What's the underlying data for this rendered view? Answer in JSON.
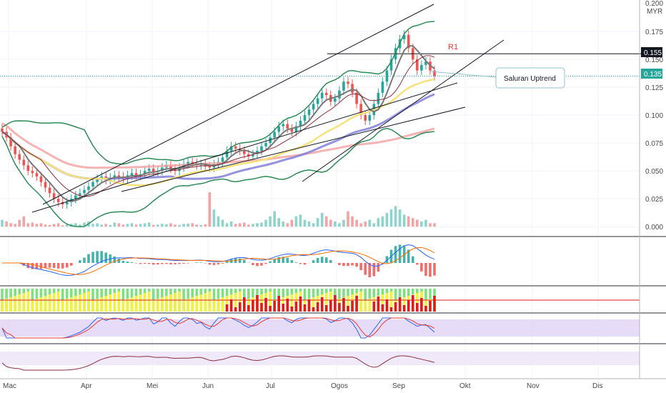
{
  "chart_data": {
    "type": "candlestick",
    "symbol_currency": "MYR",
    "y_axis": {
      "ticks": [
        "0.175",
        "0.150",
        "0.125",
        "0.100",
        "0.075",
        "0.050",
        "0.025",
        "0.000"
      ],
      "top_label": "0.200",
      "range": [
        -0.005,
        0.2
      ]
    },
    "x_axis": {
      "months": [
        "Mac",
        "Apr",
        "Mei",
        "Jun",
        "Jul",
        "Ogos",
        "Sep",
        "Okt",
        "Nov",
        "Dis"
      ]
    },
    "price_badges": [
      {
        "label": "0.155",
        "value": 0.155,
        "color": "#131722"
      },
      {
        "label": "0.135",
        "value": 0.135,
        "color": "#26a69a"
      }
    ],
    "resistance": {
      "label": "R1",
      "value": 0.155
    },
    "annotation": {
      "text": "Saluran Uptrend"
    },
    "closes": [
      0.085,
      0.08,
      0.072,
      0.065,
      0.06,
      0.055,
      0.05,
      0.048,
      0.045,
      0.04,
      0.035,
      0.03,
      0.025,
      0.022,
      0.02,
      0.022,
      0.025,
      0.028,
      0.03,
      0.033,
      0.036,
      0.04,
      0.043,
      0.045,
      0.042,
      0.044,
      0.046,
      0.045,
      0.043,
      0.046,
      0.048,
      0.046,
      0.047,
      0.05,
      0.052,
      0.049,
      0.05,
      0.053,
      0.055,
      0.052,
      0.05,
      0.053,
      0.056,
      0.058,
      0.057,
      0.055,
      0.056,
      0.054,
      0.053,
      0.056,
      0.058,
      0.062,
      0.068,
      0.072,
      0.07,
      0.068,
      0.065,
      0.063,
      0.065,
      0.068,
      0.072,
      0.075,
      0.08,
      0.085,
      0.09,
      0.092,
      0.088,
      0.085,
      0.09,
      0.095,
      0.1,
      0.105,
      0.11,
      0.115,
      0.12,
      0.118,
      0.112,
      0.115,
      0.122,
      0.13,
      0.128,
      0.12,
      0.11,
      0.1,
      0.095,
      0.1,
      0.11,
      0.12,
      0.13,
      0.14,
      0.15,
      0.16,
      0.168,
      0.172,
      0.16,
      0.15,
      0.14,
      0.145,
      0.148,
      0.14,
      0.135
    ],
    "volumes": [
      0.02,
      0.015,
      0.01,
      0.008,
      0.02,
      0.03,
      0.01,
      0.012,
      0.008,
      0.01,
      0.006,
      0.005,
      0.008,
      0.01,
      0.004,
      0.006,
      0.008,
      0.01,
      0.006,
      0.012,
      0.015,
      0.008,
      0.01,
      0.006,
      0.008,
      0.005,
      0.012,
      0.01,
      0.006,
      0.008,
      0.01,
      0.006,
      0.008,
      0.01,
      0.012,
      0.005,
      0.006,
      0.008,
      0.007,
      0.01,
      0.006,
      0.005,
      0.008,
      0.009,
      0.01,
      0.006,
      0.005,
      0.007,
      0.1,
      0.05,
      0.03,
      0.02,
      0.01,
      0.015,
      0.008,
      0.01,
      0.012,
      0.006,
      0.008,
      0.01,
      0.012,
      0.02,
      0.03,
      0.045,
      0.025,
      0.015,
      0.01,
      0.02,
      0.03,
      0.035,
      0.02,
      0.015,
      0.01,
      0.025,
      0.04,
      0.03,
      0.02,
      0.015,
      0.01,
      0.02,
      0.045,
      0.03,
      0.02,
      0.01,
      0.015,
      0.02,
      0.01,
      0.025,
      0.03,
      0.04,
      0.05,
      0.06,
      0.05,
      0.035,
      0.03,
      0.025,
      0.02,
      0.015,
      0.02,
      0.01,
      0.01
    ]
  }
}
